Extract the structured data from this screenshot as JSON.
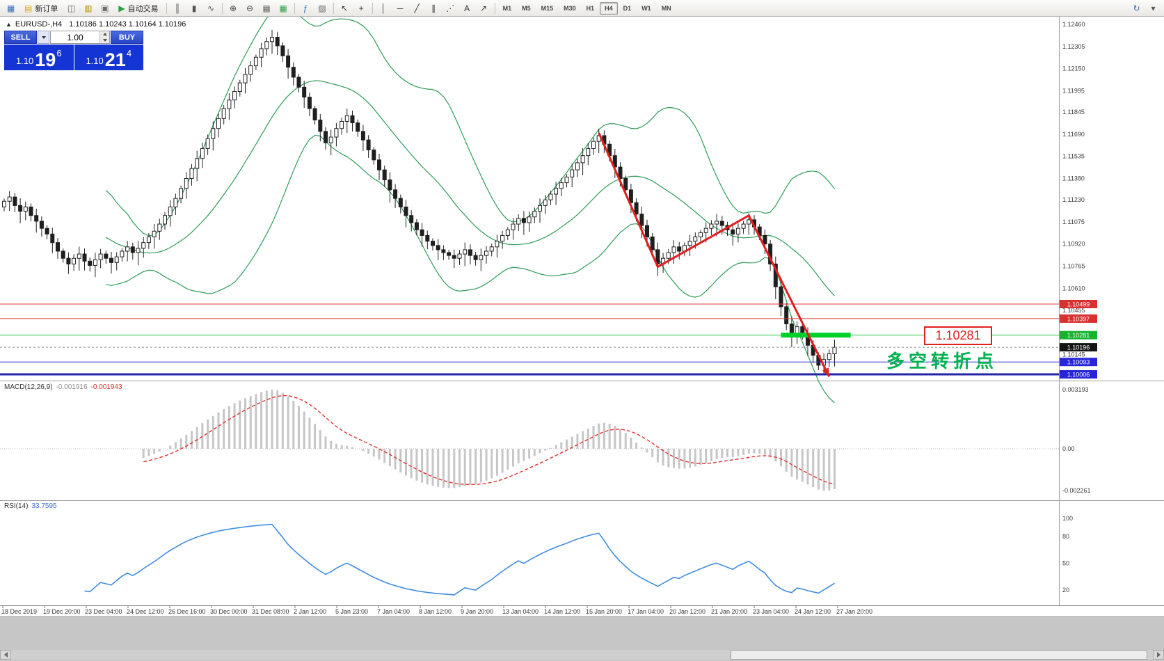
{
  "header": {
    "collapse_glyph": "▲",
    "symbol": "EURUSD-,H4",
    "ohlc": "1.10186 1.10243 1.10164 1.10196"
  },
  "trade": {
    "sell_label": "SELL",
    "buy_label": "BUY",
    "volume": "1.00",
    "sell_price": {
      "prefix": "1.10",
      "big": "19",
      "sup": "6"
    },
    "buy_price": {
      "prefix": "1.10",
      "big": "21",
      "sup": "4"
    }
  },
  "toolbar": {
    "items": [
      {
        "t": "icon",
        "name": "terminal-icon",
        "g": "▦",
        "c": "#3a66c8"
      },
      {
        "t": "btn",
        "name": "new-order-button",
        "g": "▤",
        "c": "#d9a51b",
        "label": "新订单"
      },
      {
        "t": "icon",
        "name": "chart-window-icon",
        "g": "◫",
        "c": "#6a6a6a"
      },
      {
        "t": "icon",
        "name": "profiles-icon",
        "g": "▥",
        "c": "#b58a00"
      },
      {
        "t": "icon",
        "name": "data-window-icon",
        "g": "▣",
        "c": "#6a6a6a"
      },
      {
        "t": "btn",
        "name": "autotrading-button",
        "g": "▶",
        "c": "#21a33e",
        "label": "自动交易"
      },
      {
        "t": "sep"
      },
      {
        "t": "icon",
        "name": "bar-chart-icon",
        "g": "║",
        "c": "#555555"
      },
      {
        "t": "icon",
        "name": "candlestick-chart-icon",
        "g": "▮",
        "c": "#555555"
      },
      {
        "t": "icon",
        "name": "line-chart-icon",
        "g": "∿",
        "c": "#555555"
      },
      {
        "t": "sep"
      },
      {
        "t": "icon",
        "name": "zoom-in-icon",
        "g": "⊕",
        "c": "#444444"
      },
      {
        "t": "icon",
        "name": "zoom-out-icon",
        "g": "⊖",
        "c": "#444444"
      },
      {
        "t": "icon",
        "name": "tile-windows-icon",
        "g": "▦",
        "c": "#666666"
      },
      {
        "t": "icon",
        "name": "grid-icon",
        "g": "▦",
        "c": "#2f9e44"
      },
      {
        "t": "sep"
      },
      {
        "t": "icon",
        "name": "indicators-icon",
        "g": "ƒ",
        "c": "#2f6fbf"
      },
      {
        "t": "icon",
        "name": "templates-icon",
        "g": "▨",
        "c": "#666666"
      },
      {
        "t": "sep"
      },
      {
        "t": "icon",
        "name": "cursor-icon",
        "g": "↖",
        "c": "#333333"
      },
      {
        "t": "icon",
        "name": "crosshair-icon",
        "g": "+",
        "c": "#333333"
      },
      {
        "t": "sep"
      },
      {
        "t": "icon",
        "name": "vertical-line-icon",
        "g": "│",
        "c": "#333333"
      },
      {
        "t": "icon",
        "name": "horizontal-line-icon",
        "g": "─",
        "c": "#333333"
      },
      {
        "t": "icon",
        "name": "trendline-icon",
        "g": "╱",
        "c": "#333333"
      },
      {
        "t": "icon",
        "name": "channel-icon",
        "g": "∥",
        "c": "#333333"
      },
      {
        "t": "icon",
        "name": "fibonacci-icon",
        "g": "⋰",
        "c": "#333333"
      },
      {
        "t": "icon",
        "name": "text-label-icon",
        "g": "A",
        "c": "#333333"
      },
      {
        "t": "icon",
        "name": "arrow-tool-icon",
        "g": "↗",
        "c": "#333333"
      },
      {
        "t": "sep"
      },
      {
        "t": "tf",
        "label": "M1"
      },
      {
        "t": "tf",
        "label": "M5"
      },
      {
        "t": "tf",
        "label": "M15"
      },
      {
        "t": "tf",
        "label": "M30"
      },
      {
        "t": "tf",
        "label": "H1"
      },
      {
        "t": "tf",
        "label": "H4",
        "active": true
      },
      {
        "t": "tf",
        "label": "D1"
      },
      {
        "t": "tf",
        "label": "W1"
      },
      {
        "t": "tf",
        "label": "MN"
      },
      {
        "t": "spring"
      },
      {
        "t": "icon",
        "name": "refresh-icon",
        "g": "↻",
        "c": "#3a66c8"
      },
      {
        "t": "icon",
        "name": "toolbar-menu-icon",
        "g": "▾",
        "c": "#555555"
      }
    ]
  },
  "indicators": {
    "macd_name": "MACD(12,26,9)",
    "macd_value": "-0.001916",
    "macd_signal": "-0.001943",
    "rsi_name": "RSI(14)",
    "rsi_value": "33.7595"
  },
  "annotations": {
    "price_box": "1.10281",
    "turning_point": "多空转折点"
  },
  "chart_data": {
    "type": "candlestick",
    "symbol": "EURUSD-",
    "timeframe": "H4",
    "closes": [
      1.1122,
      1.1125,
      1.1119,
      1.1115,
      1.1118,
      1.1112,
      1.1108,
      1.1103,
      1.1099,
      1.1093,
      1.1087,
      1.1082,
      1.1078,
      1.1082,
      1.1085,
      1.108,
      1.1077,
      1.1081,
      1.1085,
      1.1082,
      1.1079,
      1.1083,
      1.1087,
      1.109,
      1.1086,
      1.1089,
      1.1093,
      1.1097,
      1.1101,
      1.1106,
      1.1112,
      1.1118,
      1.1124,
      1.1131,
      1.1138,
      1.1145,
      1.1152,
      1.1159,
      1.1166,
      1.1173,
      1.118,
      1.1187,
      1.1193,
      1.1199,
      1.1205,
      1.1211,
      1.1217,
      1.1223,
      1.1229,
      1.1234,
      1.1237,
      1.1231,
      1.1224,
      1.1216,
      1.1209,
      1.1202,
      1.1195,
      1.1187,
      1.1179,
      1.1171,
      1.1163,
      1.1167,
      1.1173,
      1.1178,
      1.1182,
      1.1177,
      1.1171,
      1.1165,
      1.1158,
      1.1151,
      1.1144,
      1.1137,
      1.113,
      1.1124,
      1.1118,
      1.1112,
      1.1107,
      1.1102,
      1.1098,
      1.1094,
      1.1091,
      1.1088,
      1.1086,
      1.1084,
      1.1082,
      1.1085,
      1.1088,
      1.1084,
      1.1081,
      1.1084,
      1.1087,
      1.109,
      1.1094,
      1.1098,
      1.1102,
      1.1106,
      1.111,
      1.1107,
      1.1111,
      1.1115,
      1.1119,
      1.1123,
      1.1127,
      1.1131,
      1.1135,
      1.1139,
      1.1144,
      1.1149,
      1.1154,
      1.1159,
      1.1164,
      1.1168,
      1.1162,
      1.1154,
      1.1146,
      1.1138,
      1.113,
      1.1121,
      1.1113,
      1.1105,
      1.1097,
      1.1088,
      1.1078,
      1.1082,
      1.1086,
      1.109,
      1.1087,
      1.1091,
      1.1094,
      1.1097,
      1.11,
      1.1103,
      1.1106,
      1.1108,
      1.1105,
      1.1102,
      1.1099,
      1.1103,
      1.1106,
      1.1109,
      1.1104,
      1.1098,
      1.1092,
      1.1078,
      1.1062,
      1.1048,
      1.1036,
      1.1028,
      1.1034,
      1.1029,
      1.1021,
      1.1014,
      1.1007,
      1.1011,
      1.1015,
      1.10196
    ],
    "bollinger": {
      "period": 20,
      "deviation": 2
    },
    "price_ticks": [
      "1.12460",
      "1.12305",
      "1.12150",
      "1.11995",
      "1.11845",
      "1.11690",
      "1.11535",
      "1.11380",
      "1.11230",
      "1.11075",
      "1.10920",
      "1.10765",
      "1.10610",
      "1.10455",
      "1.10145"
    ],
    "levels": [
      {
        "price": 1.10499,
        "color": "#e13b3b",
        "tag": "#d93030",
        "width": 1
      },
      {
        "price": 1.10397,
        "color": "#e13b3b",
        "tag": "#d93030",
        "width": 1
      },
      {
        "price": 1.10281,
        "color": "#27c93f",
        "tag": "#17b32e",
        "width": 1
      },
      {
        "price": 1.10093,
        "color": "#2d2dcc",
        "tag": "#2626d8",
        "width": 1
      },
      {
        "price": 1.10006,
        "color": "#2323a8",
        "tag": "#2626d8",
        "width": 3
      }
    ],
    "current_price": {
      "price": 1.10196,
      "tag": "#141414"
    },
    "highlight": {
      "price": 1.10281,
      "from_bar": 145,
      "to_bar": 158
    },
    "trend_line": [
      {
        "bar": 111,
        "price": 1.117
      },
      {
        "bar": 122,
        "price": 1.1076
      },
      {
        "bar": 139,
        "price": 1.1112
      },
      {
        "bar": 154,
        "price": 1.0999
      }
    ],
    "macd_ticks": [
      "0.003193",
      "0.00",
      "-0.002261"
    ],
    "rsi_ticks": [
      "100",
      "80",
      "50",
      "20"
    ],
    "dates": [
      "18 Dec 2019",
      "19 Dec 20:00",
      "23 Dec 04:00",
      "24 Dec 12:00",
      "26 Dec 16:00",
      "30 Dec 00:00",
      "31 Dec 08:00",
      "2 Jan 12:00",
      "5 Jan 23:00",
      "7 Jan 04:00",
      "8 Jan 12:00",
      "9 Jan 20:00",
      "13 Jan 04:00",
      "14 Jan 12:00",
      "15 Jan 20:00",
      "17 Jan 04:00",
      "20 Jan 12:00",
      "21 Jan 20:00",
      "23 Jan 04:00",
      "24 Jan 12:00",
      "27 Jan 20:00"
    ],
    "colors": {
      "bollinger": "#2e9b57",
      "candle": "#1f1f1f",
      "bull_fill": "#ffffff",
      "macd_hist": "#c6c6c6",
      "macd_signal": "#e03030",
      "rsi": "#3f8ce0",
      "trend": "#e01f1f",
      "highlight": "#00d02a"
    }
  }
}
